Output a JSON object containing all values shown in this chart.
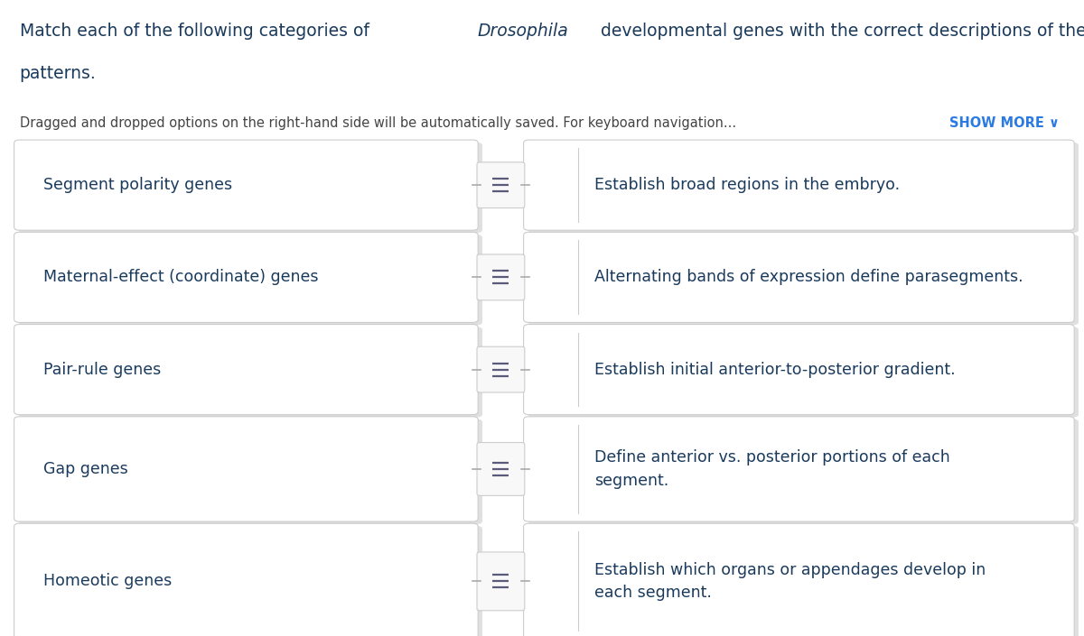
{
  "background_color": "#ffffff",
  "text_color": "#1a3a5c",
  "subtitle_color": "#444444",
  "link_color": "#2a7ae2",
  "box_border_color": "#cccccc",
  "box_shadow_color": "#e0e0e0",
  "left_items": [
    "Segment polarity genes",
    "Maternal-effect (coordinate) genes",
    "Pair-rule genes",
    "Gap genes",
    "Homeotic genes"
  ],
  "right_items": [
    "Establish broad regions in the embryo.",
    "Alternating bands of expression define parasegments.",
    "Establish initial anterior-to-posterior gradient.",
    "Define anterior vs. posterior portions of each\nsegment.",
    "Establish which organs or appendages develop in\neach segment."
  ],
  "font_size_title": 13.5,
  "font_size_items": 12.5,
  "font_size_subtitle": 10.5
}
